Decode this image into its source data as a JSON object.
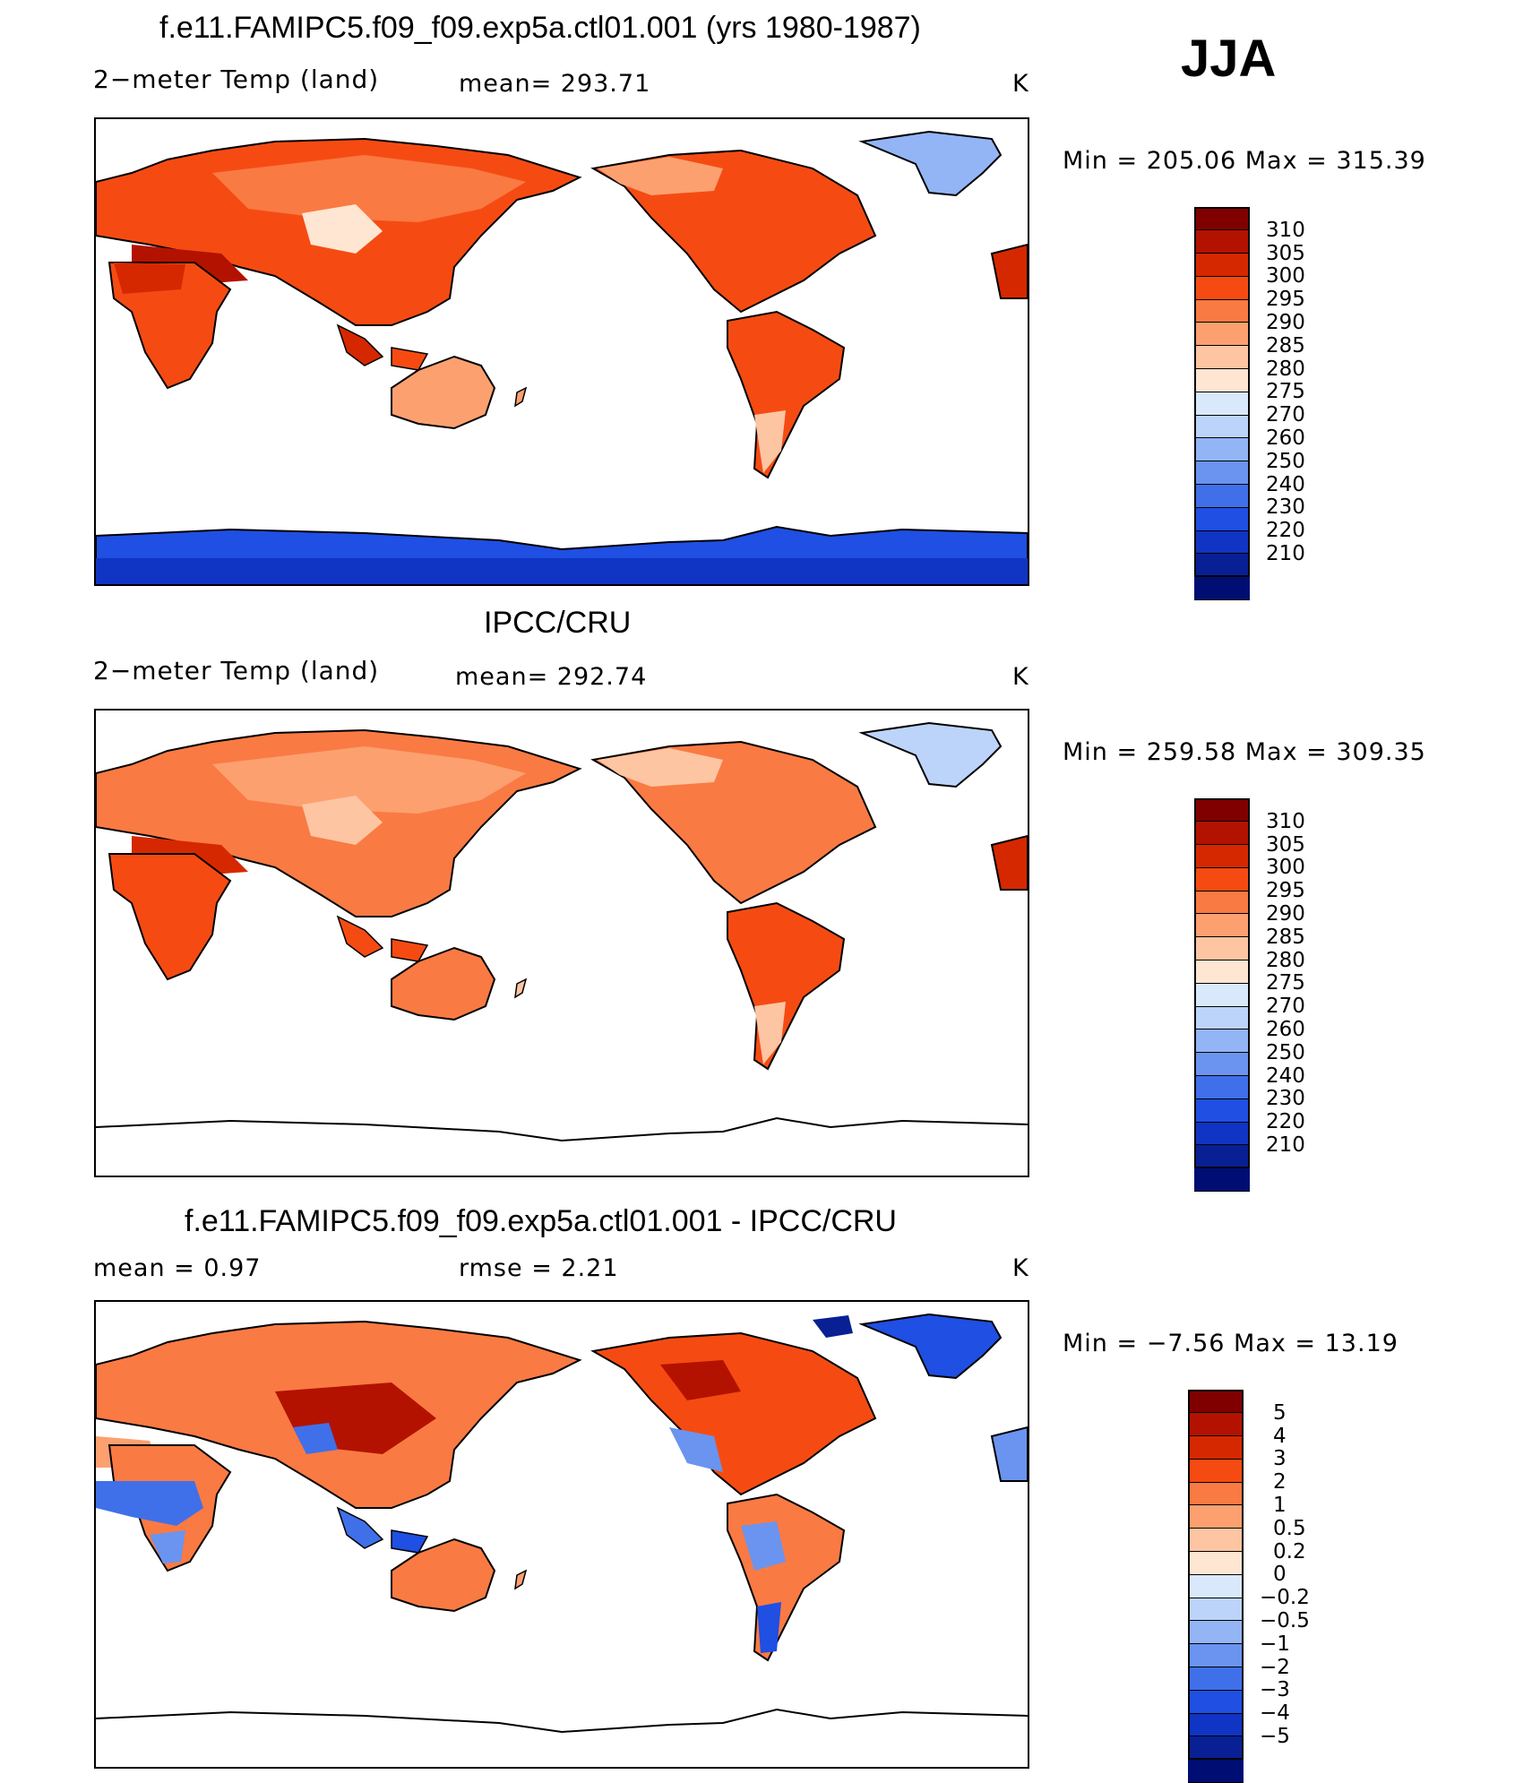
{
  "season": "JJA",
  "panels": [
    {
      "id": "model",
      "title": "f.e11.FAMIPC5.f09_f09.exp5a.ctl01.001 (yrs 1980-1987)",
      "left_label": "2−meter Temp (land)",
      "center_label": "mean= 293.71",
      "units": "K",
      "minmax": "Min = 205.06 Max = 315.39",
      "colorbar": {
        "colors": [
          "#800000",
          "#b31200",
          "#d62800",
          "#f54b13",
          "#fa7a43",
          "#fca070",
          "#fdc5a2",
          "#fee6d2",
          "#d9e9fb",
          "#bcd4fa",
          "#93b5f5",
          "#6a94ef",
          "#3f70ea",
          "#1f4fe3",
          "#1034c4",
          "#082094",
          "#000d73"
        ],
        "ticks": [
          "310",
          "305",
          "300",
          "295",
          "290",
          "285",
          "280",
          "275",
          "270",
          "260",
          "250",
          "240",
          "230",
          "220",
          "210"
        ]
      }
    },
    {
      "id": "obs",
      "title": "IPCC/CRU",
      "left_label": "2−meter Temp (land)",
      "center_label": "mean= 292.74",
      "units": "K",
      "minmax": "Min = 259.58 Max = 309.35",
      "colorbar": {
        "colors": [
          "#800000",
          "#b31200",
          "#d62800",
          "#f54b13",
          "#fa7a43",
          "#fca070",
          "#fdc5a2",
          "#fee6d2",
          "#d9e9fb",
          "#bcd4fa",
          "#93b5f5",
          "#6a94ef",
          "#3f70ea",
          "#1f4fe3",
          "#1034c4",
          "#082094",
          "#000d73"
        ],
        "ticks": [
          "310",
          "305",
          "300",
          "295",
          "290",
          "285",
          "280",
          "275",
          "270",
          "260",
          "250",
          "240",
          "230",
          "220",
          "210"
        ]
      }
    },
    {
      "id": "diff",
      "title": "f.e11.FAMIPC5.f09_f09.exp5a.ctl01.001 - IPCC/CRU",
      "left_label": "mean =     0.97",
      "center_label": "rmse =     2.21",
      "units": "K",
      "minmax": "Min =   −7.56 Max =    13.19",
      "colorbar": {
        "colors": [
          "#800000",
          "#b31200",
          "#d62800",
          "#f54b13",
          "#fa7a43",
          "#fca070",
          "#fdc5a2",
          "#fee6d2",
          "#d9e9fb",
          "#bcd4fa",
          "#93b5f5",
          "#6a94ef",
          "#3f70ea",
          "#1f4fe3",
          "#1034c4",
          "#082094",
          "#000d73"
        ],
        "ticks": [
          "5",
          "4",
          "3",
          "2",
          "1",
          "0.5",
          "0.2",
          "0",
          "−0.2",
          "−0.5",
          "−1",
          "−2",
          "−3",
          "−4",
          "−5"
        ]
      }
    }
  ]
}
